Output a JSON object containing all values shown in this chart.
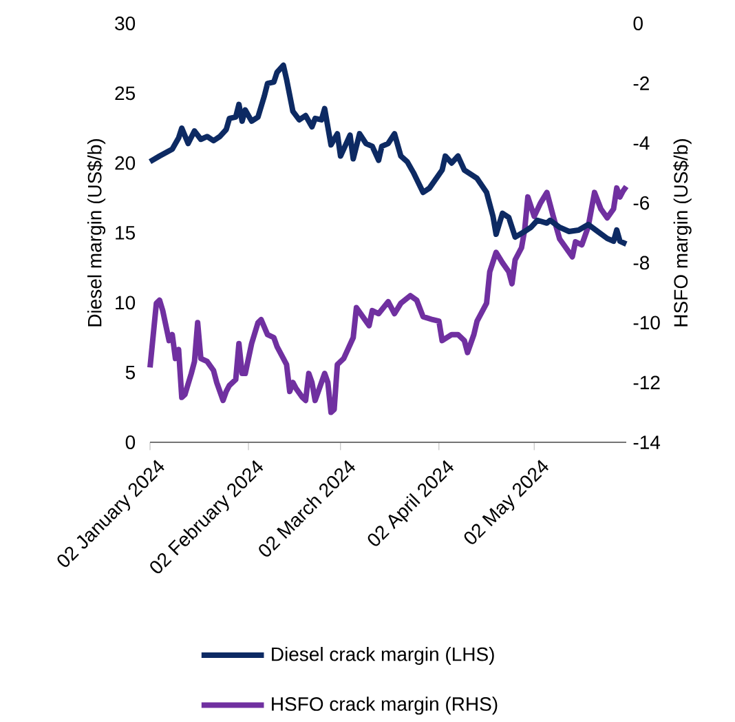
{
  "chart_data": {
    "type": "line",
    "xlabel": null,
    "ylabel": "Diesel margin (US$/b)",
    "y2label": "HSFO margin (US$/b)",
    "xlim": [
      "2024-01-02",
      "2024-05-31"
    ],
    "xticks": [
      {
        "value": "2024-01-02",
        "label": "02 January 2024"
      },
      {
        "value": "2024-02-02",
        "label": "02 February 2024"
      },
      {
        "value": "2024-03-02",
        "label": "02 March 2024"
      },
      {
        "value": "2024-04-02",
        "label": "02 April 2024"
      },
      {
        "value": "2024-05-02",
        "label": "02 May 2024"
      }
    ],
    "ylim": [
      0,
      30
    ],
    "yticks": [
      0,
      5,
      10,
      15,
      20,
      25,
      30
    ],
    "y2lim": [
      -14,
      0
    ],
    "y2ticks": [
      -14,
      -12,
      -10,
      -8,
      -6,
      -4,
      -2,
      0
    ],
    "legend": "bottom",
    "series": [
      {
        "name": "Diesel crack margin (LHS)",
        "color": "#0d2a63",
        "x": [
          "2024-01-02",
          "2024-01-05",
          "2024-01-09",
          "2024-01-11",
          "2024-01-12",
          "2024-01-14",
          "2024-01-16",
          "2024-01-18",
          "2024-01-20",
          "2024-01-22",
          "2024-01-24",
          "2024-01-26",
          "2024-01-27",
          "2024-01-29",
          "2024-01-30",
          "2024-01-31",
          "2024-02-01",
          "2024-02-03",
          "2024-02-05",
          "2024-02-07",
          "2024-02-08",
          "2024-02-10",
          "2024-02-11",
          "2024-02-13",
          "2024-02-14",
          "2024-02-16",
          "2024-02-18",
          "2024-02-20",
          "2024-02-22",
          "2024-02-23",
          "2024-02-25",
          "2024-02-26",
          "2024-02-28",
          "2024-03-01",
          "2024-03-02",
          "2024-03-05",
          "2024-03-06",
          "2024-03-08",
          "2024-03-10",
          "2024-03-12",
          "2024-03-14",
          "2024-03-15",
          "2024-03-17",
          "2024-03-19",
          "2024-03-21",
          "2024-03-23",
          "2024-03-25",
          "2024-03-28",
          "2024-03-30",
          "2024-04-03",
          "2024-04-04",
          "2024-04-06",
          "2024-04-08",
          "2024-04-10",
          "2024-04-14",
          "2024-04-17",
          "2024-04-19",
          "2024-04-20",
          "2024-04-22",
          "2024-04-24",
          "2024-04-26",
          "2024-04-29",
          "2024-05-01",
          "2024-05-03",
          "2024-05-06",
          "2024-05-07",
          "2024-05-10",
          "2024-05-13",
          "2024-05-16",
          "2024-05-19",
          "2024-05-22",
          "2024-05-25",
          "2024-05-27",
          "2024-05-28",
          "2024-05-29",
          "2024-05-31"
        ],
        "values": [
          20.1,
          20.5,
          21.0,
          21.8,
          22.5,
          21.4,
          22.3,
          21.7,
          21.9,
          21.6,
          21.9,
          22.4,
          23.2,
          23.3,
          24.2,
          23.0,
          23.8,
          23.0,
          23.3,
          24.8,
          25.7,
          25.8,
          26.5,
          27.0,
          26.0,
          23.7,
          23.1,
          23.4,
          22.6,
          23.2,
          23.1,
          23.9,
          21.3,
          22.1,
          20.5,
          22.0,
          20.3,
          22.1,
          21.4,
          21.2,
          20.2,
          21.2,
          21.4,
          22.1,
          20.5,
          20.1,
          19.3,
          17.9,
          18.2,
          19.5,
          20.5,
          20.0,
          20.5,
          19.5,
          18.9,
          17.9,
          16.2,
          14.9,
          16.4,
          16.1,
          14.7,
          15.1,
          15.4,
          15.9,
          15.7,
          15.9,
          15.4,
          15.1,
          15.2,
          15.6,
          15.1,
          14.6,
          14.4,
          15.2,
          14.4,
          14.2
        ]
      },
      {
        "name": "HSFO crack margin (RHS)",
        "axis": "y2",
        "color": "#7030a0",
        "x": [
          "2024-01-02",
          "2024-01-04",
          "2024-01-05",
          "2024-01-06",
          "2024-01-08",
          "2024-01-09",
          "2024-01-10",
          "2024-01-11",
          "2024-01-12",
          "2024-01-13",
          "2024-01-15",
          "2024-01-16",
          "2024-01-17",
          "2024-01-18",
          "2024-01-20",
          "2024-01-22",
          "2024-01-23",
          "2024-01-25",
          "2024-01-26",
          "2024-01-27",
          "2024-01-29",
          "2024-01-30",
          "2024-01-31",
          "2024-02-01",
          "2024-02-03",
          "2024-02-05",
          "2024-02-06",
          "2024-02-08",
          "2024-02-10",
          "2024-02-11",
          "2024-02-14",
          "2024-02-15",
          "2024-02-16",
          "2024-02-17",
          "2024-02-19",
          "2024-02-20",
          "2024-02-21",
          "2024-02-22",
          "2024-02-23",
          "2024-02-25",
          "2024-02-26",
          "2024-02-27",
          "2024-02-28",
          "2024-02-29",
          "2024-03-01",
          "2024-03-03",
          "2024-03-06",
          "2024-03-07",
          "2024-03-09",
          "2024-03-11",
          "2024-03-12",
          "2024-03-14",
          "2024-03-17",
          "2024-03-19",
          "2024-03-21",
          "2024-03-24",
          "2024-03-26",
          "2024-03-28",
          "2024-03-31",
          "2024-04-02",
          "2024-04-03",
          "2024-04-06",
          "2024-04-08",
          "2024-04-10",
          "2024-04-11",
          "2024-04-13",
          "2024-04-14",
          "2024-04-17",
          "2024-04-18",
          "2024-04-20",
          "2024-04-22",
          "2024-04-24",
          "2024-04-25",
          "2024-04-26",
          "2024-04-28",
          "2024-04-29",
          "2024-04-30",
          "2024-05-02",
          "2024-05-04",
          "2024-05-06",
          "2024-05-08",
          "2024-05-10",
          "2024-05-12",
          "2024-05-14",
          "2024-05-15",
          "2024-05-17",
          "2024-05-19",
          "2024-05-21",
          "2024-05-23",
          "2024-05-25",
          "2024-05-27",
          "2024-05-28",
          "2024-05-29",
          "2024-05-30",
          "2024-05-31"
        ],
        "values": [
          -11.5,
          -9.35,
          -9.25,
          -9.6,
          -10.6,
          -10.4,
          -11.2,
          -10.9,
          -12.5,
          -12.4,
          -11.7,
          -11.3,
          -10.0,
          -11.2,
          -11.3,
          -11.6,
          -12.0,
          -12.6,
          -12.3,
          -12.1,
          -11.9,
          -10.7,
          -11.7,
          -11.7,
          -10.7,
          -10.0,
          -9.9,
          -10.4,
          -10.5,
          -10.8,
          -11.4,
          -12.3,
          -12.0,
          -12.2,
          -12.5,
          -12.6,
          -11.7,
          -12.0,
          -12.6,
          -12.0,
          -11.7,
          -12.0,
          -13.0,
          -12.9,
          -11.4,
          -11.2,
          -10.5,
          -9.5,
          -9.8,
          -10.1,
          -9.6,
          -9.7,
          -9.3,
          -9.7,
          -9.35,
          -9.1,
          -9.25,
          -9.8,
          -9.9,
          -9.95,
          -10.6,
          -10.4,
          -10.4,
          -10.6,
          -11.0,
          -10.4,
          -9.95,
          -9.35,
          -8.3,
          -7.65,
          -8.0,
          -8.3,
          -8.7,
          -7.9,
          -7.5,
          -6.9,
          -5.8,
          -6.45,
          -6.0,
          -5.65,
          -6.45,
          -7.2,
          -7.5,
          -7.8,
          -7.3,
          -7.4,
          -6.8,
          -5.65,
          -6.2,
          -6.5,
          -6.2,
          -5.5,
          -5.8,
          -5.6,
          -5.45
        ]
      }
    ]
  }
}
